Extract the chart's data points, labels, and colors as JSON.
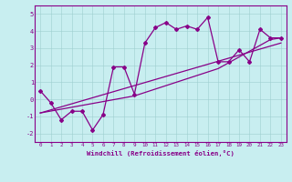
{
  "xlabel": "Windchill (Refroidissement éolien,°C)",
  "bg_color": "#c8eef0",
  "line_color": "#880088",
  "xlim": [
    -0.5,
    23.5
  ],
  "ylim": [
    -2.5,
    5.5
  ],
  "yticks": [
    -2,
    -1,
    0,
    1,
    2,
    3,
    4,
    5
  ],
  "xticks": [
    0,
    1,
    2,
    3,
    4,
    5,
    6,
    7,
    8,
    9,
    10,
    11,
    12,
    13,
    14,
    15,
    16,
    17,
    18,
    19,
    20,
    21,
    22,
    23
  ],
  "series1_x": [
    0,
    1,
    2,
    3,
    4,
    5,
    6,
    7,
    8,
    9,
    10,
    11,
    12,
    13,
    14,
    15,
    16,
    17,
    18,
    19,
    20,
    21,
    22,
    23
  ],
  "series1_y": [
    0.5,
    -0.2,
    -1.2,
    -0.7,
    -0.7,
    -1.8,
    -0.9,
    1.9,
    1.9,
    0.3,
    3.3,
    4.2,
    4.5,
    4.1,
    4.3,
    4.1,
    4.8,
    2.2,
    2.2,
    2.9,
    2.2,
    4.1,
    3.6,
    3.6
  ],
  "series2_x": [
    0,
    23
  ],
  "series2_y": [
    -0.8,
    3.3
  ],
  "series3_x": [
    0,
    9,
    17,
    22,
    23
  ],
  "series3_y": [
    -0.8,
    0.2,
    1.8,
    3.5,
    3.6
  ]
}
